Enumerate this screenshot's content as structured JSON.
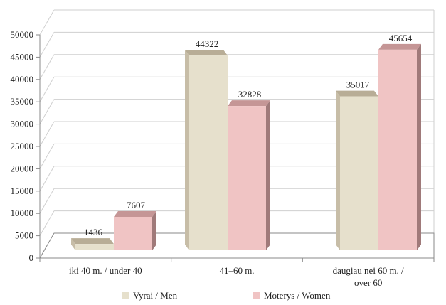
{
  "chart_data": {
    "type": "bar",
    "title": "",
    "xlabel": "",
    "ylabel": "",
    "ylim": [
      0,
      50000
    ],
    "y_ticks": [
      "0",
      "5000",
      "10000",
      "15000",
      "20000",
      "25000",
      "30000",
      "35000",
      "40000",
      "45000",
      "50000"
    ],
    "categories": [
      [
        "iki 40 m. / under 40"
      ],
      [
        "41–60 m."
      ],
      [
        "daugiau nei 60 m. /",
        "over 60"
      ]
    ],
    "series": [
      {
        "name": "Vyrai / Men",
        "values": [
          1436,
          44322,
          35017
        ],
        "color": "#e6e0cc",
        "top_color": "#b8ad96",
        "side_color": "#c7bda7"
      },
      {
        "name": "Moterys / Women",
        "values": [
          7607,
          32828,
          45654
        ],
        "color": "#f0c4c4",
        "top_color": "#c59696",
        "side_color": "#a07a7a"
      }
    ],
    "data_labels": true,
    "grid": true,
    "legend_position": "bottom",
    "three_d": true
  }
}
